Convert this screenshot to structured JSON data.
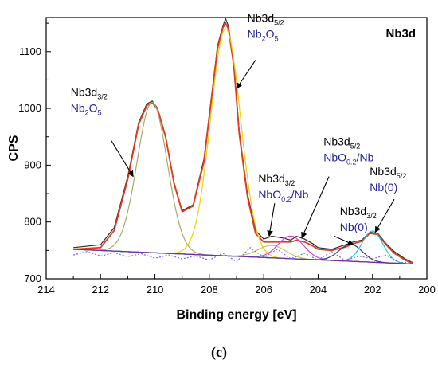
{
  "chart_data": {
    "type": "line",
    "title": "Nb3d",
    "xlabel": "Binding energy [eV]",
    "ylabel": "CPS",
    "xlim": [
      214,
      200
    ],
    "x_reversed": true,
    "ylim": [
      700,
      1160
    ],
    "xticks": [
      214,
      212,
      210,
      208,
      206,
      204,
      202,
      200
    ],
    "yticks": [
      700,
      800,
      900,
      1000,
      1100
    ],
    "grid": false,
    "caption": "(c)",
    "series": [
      {
        "role": "measured",
        "color": "#2a2a2a",
        "x": [
          213.0,
          212.0,
          211.5,
          211.0,
          210.6,
          210.3,
          210.1,
          209.9,
          209.6,
          209.3,
          209.0,
          208.6,
          208.2,
          207.9,
          207.7,
          207.5,
          207.4,
          207.3,
          207.1,
          206.9,
          206.6,
          206.3,
          206.0,
          205.7,
          205.3,
          205.0,
          204.8,
          204.5,
          204.2,
          204.0,
          203.5,
          203.0,
          202.7,
          202.4,
          202.1,
          201.8,
          201.5,
          201.2,
          200.8,
          200.5
        ],
        "y": [
          755,
          760,
          790,
          880,
          975,
          1008,
          1013,
          1000,
          950,
          870,
          820,
          830,
          910,
          1030,
          1110,
          1145,
          1158,
          1145,
          1080,
          960,
          850,
          785,
          770,
          775,
          772,
          768,
          775,
          770,
          762,
          755,
          752,
          760,
          765,
          768,
          782,
          780,
          762,
          748,
          735,
          728
        ]
      },
      {
        "role": "envelope",
        "color": "#e23b1e",
        "x": [
          213.0,
          212.0,
          211.5,
          211.0,
          210.6,
          210.3,
          210.1,
          209.9,
          209.6,
          209.3,
          209.0,
          208.6,
          208.2,
          207.9,
          207.7,
          207.5,
          207.4,
          207.3,
          207.1,
          206.9,
          206.6,
          206.3,
          206.0,
          205.7,
          205.3,
          205.0,
          204.8,
          204.5,
          204.2,
          204.0,
          203.5,
          203.0,
          202.7,
          202.4,
          202.1,
          201.8,
          201.5,
          201.2,
          200.8,
          200.5
        ],
        "y": [
          752,
          755,
          785,
          875,
          972,
          1005,
          1010,
          998,
          948,
          868,
          818,
          828,
          905,
          1025,
          1105,
          1142,
          1150,
          1140,
          1075,
          955,
          845,
          780,
          765,
          765,
          765,
          765,
          768,
          765,
          758,
          752,
          750,
          756,
          762,
          766,
          780,
          778,
          760,
          745,
          733,
          726
        ]
      },
      {
        "role": "component Nb3d3/2 Nb2O5",
        "color": "#a8a86a",
        "center": 210.1,
        "amplitude": 265,
        "fwhm": 1.3
      },
      {
        "role": "component Nb3d5/2 Nb2O5",
        "color": "#f0d000",
        "center": 207.4,
        "amplitude": 400,
        "fwhm": 1.3
      },
      {
        "role": "component Nb3d3/2 NbO0.2/Nb",
        "color": "#c8c850",
        "center": 205.7,
        "amplitude": 22,
        "fwhm": 1.2
      },
      {
        "role": "component Nb3d5/2 NbO0.2/Nb",
        "color": "#e040d8",
        "center": 205.0,
        "amplitude": 40,
        "fwhm": 1.1
      },
      {
        "role": "component Nb3d3/2 Nb(0)",
        "color": "#2a3a8a",
        "center": 202.8,
        "amplitude": 30,
        "fwhm": 1.0
      },
      {
        "role": "component Nb3d5/2 Nb(0)",
        "color": "#20c8d8",
        "center": 202.0,
        "amplitude": 55,
        "fwhm": 0.9
      },
      {
        "role": "background",
        "color": "#7a2aa0",
        "x": [
          213.0,
          200.5
        ],
        "y": [
          752,
          726
        ]
      },
      {
        "role": "residual",
        "color": "#6a6af0",
        "x": [
          213.0,
          212.5,
          212.0,
          211.5,
          211.0,
          210.5,
          210.0,
          209.5,
          209.0,
          208.5,
          208.0,
          207.5,
          207.0,
          206.5,
          206.0,
          205.5,
          205.0,
          204.5,
          204.0,
          203.5,
          203.0,
          202.5,
          202.0,
          201.5,
          201.0,
          200.5
        ],
        "y": [
          742,
          748,
          740,
          746,
          739,
          744,
          736,
          742,
          735,
          740,
          733,
          745,
          730,
          755,
          738,
          752,
          735,
          745,
          733,
          748,
          732,
          740,
          735,
          742,
          728,
          730
        ]
      }
    ],
    "annotations": [
      {
        "line1": "Nb3d",
        "line1_sub": "3/2",
        "line2": "Nb",
        "line2_sub": "2",
        "line2_mid": "O",
        "line2_sub2": "5",
        "text_x": 213.1,
        "text_y": 1022,
        "arrow_from": [
          211.6,
          943
        ],
        "arrow_to": [
          210.8,
          880
        ]
      },
      {
        "line1": "Nb3d",
        "line1_sub": "5/2",
        "line2": "Nb",
        "line2_sub": "2",
        "line2_mid": "O",
        "line2_sub2": "5",
        "text_x": 206.6,
        "text_y": 1152,
        "arrow_from": [
          206.3,
          1085
        ],
        "arrow_to": [
          207.0,
          1035
        ]
      },
      {
        "line1": "Nb3d",
        "line1_sub": "3/2",
        "line2": "NbO",
        "line2_sub": "0.2",
        "line2_mid": "/Nb",
        "line2_sub2": "",
        "text_x": 206.2,
        "text_y": 870,
        "arrow_from": [
          205.6,
          833
        ],
        "arrow_to": [
          205.8,
          775
        ]
      },
      {
        "line1": "Nb3d",
        "line1_sub": "5/2",
        "line2": "NbO",
        "line2_sub": "0.2",
        "line2_mid": "/Nb",
        "line2_sub2": "",
        "text_x": 203.8,
        "text_y": 935,
        "arrow_from": [
          203.6,
          880
        ],
        "arrow_to": [
          204.6,
          772
        ]
      },
      {
        "line1": "Nb3d",
        "line1_sub": "3/2",
        "line2": "Nb(0)",
        "line2_sub": "",
        "line2_mid": "",
        "line2_sub2": "",
        "text_x": 203.2,
        "text_y": 812,
        "arrow_from": [
          203.4,
          775
        ],
        "arrow_to": [
          202.7,
          760
        ]
      },
      {
        "line1": "Nb3d",
        "line1_sub": "5/2",
        "line2": "Nb(0)",
        "line2_sub": "",
        "line2_mid": "",
        "line2_sub2": "",
        "text_x": 202.1,
        "text_y": 882,
        "arrow_from": [
          201.2,
          840
        ],
        "arrow_to": [
          201.9,
          782
        ]
      }
    ]
  }
}
